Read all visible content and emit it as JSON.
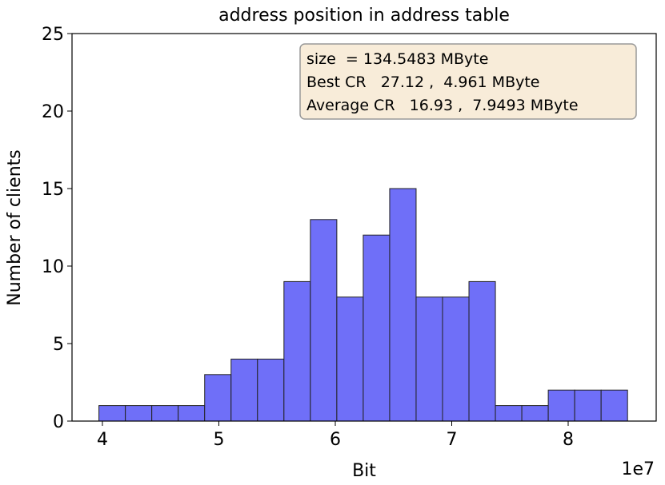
{
  "chart_data": {
    "type": "histogram",
    "title": "address position in address table",
    "x_label": "Bit",
    "y_label": "Number of clients",
    "x_offset_label": "1e7",
    "bins": [
      3.97,
      4.197,
      4.424,
      4.651,
      4.878,
      5.105,
      5.332,
      5.559,
      5.786,
      6.013,
      6.24,
      6.467,
      6.694,
      6.921,
      7.148,
      7.375,
      7.602,
      7.829,
      8.056,
      8.283,
      8.51
    ],
    "values": [
      1,
      1,
      1,
      1,
      3,
      4,
      4,
      9,
      13,
      8,
      12,
      15,
      8,
      8,
      9,
      1,
      1,
      2,
      2,
      2
    ],
    "color": "#6f6ff8",
    "xlim": [
      3.739,
      8.756
    ],
    "xticks": [
      4,
      5,
      6,
      7,
      8
    ],
    "ylim": [
      0,
      25
    ],
    "yticks": [
      0,
      5,
      10,
      15,
      20,
      25
    ],
    "annotations": [
      "size  = 134.5483 MByte",
      "Best CR   27.12 ,  4.961 MByte",
      "Average CR   16.93 ,  7.9493 MByte"
    ]
  }
}
